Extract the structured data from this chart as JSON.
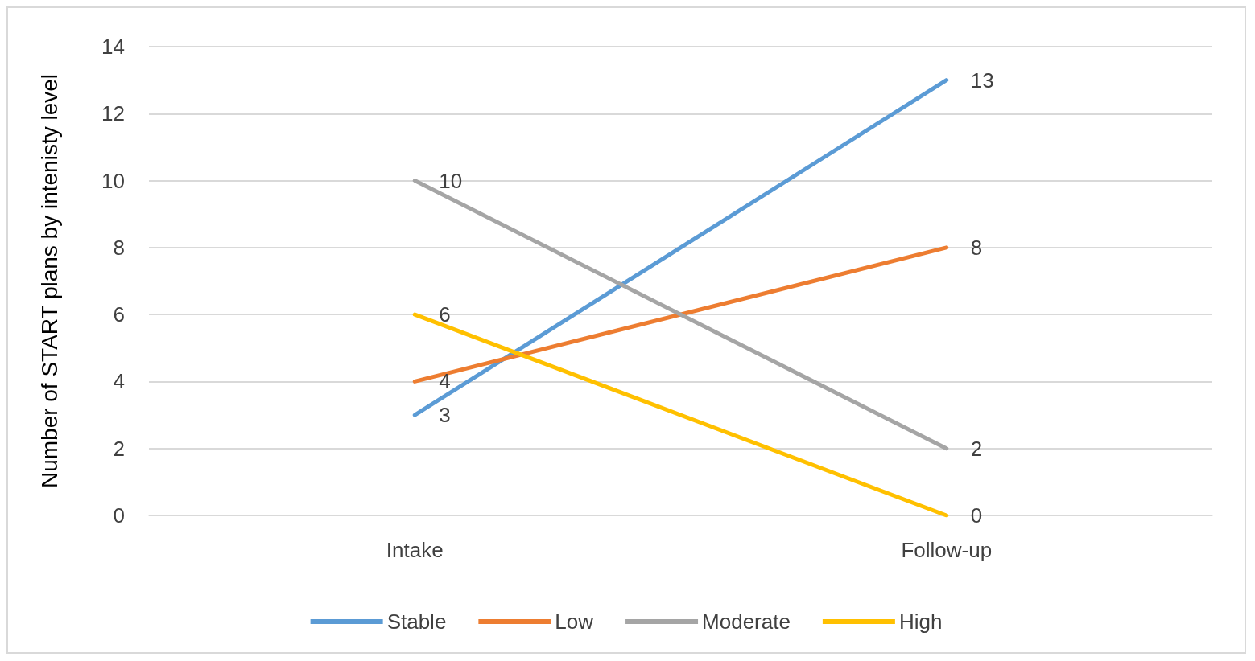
{
  "chart_data": {
    "type": "line",
    "ylabel": "Number of START plans by intenisty level",
    "categories": [
      "Intake",
      "Follow-up"
    ],
    "series": [
      {
        "name": "Stable",
        "color": "#5b9bd5",
        "values": [
          3,
          13
        ]
      },
      {
        "name": "Low",
        "color": "#ed7d31",
        "values": [
          4,
          8
        ]
      },
      {
        "name": "Moderate",
        "color": "#a5a5a5",
        "values": [
          10,
          2
        ]
      },
      {
        "name": "High",
        "color": "#ffc000",
        "values": [
          6,
          0
        ]
      }
    ],
    "ylim": [
      0,
      14
    ],
    "yticks": [
      0,
      2,
      4,
      6,
      8,
      10,
      12,
      14
    ],
    "grid": "y",
    "legend": "bottom",
    "data_labels": true,
    "marker": "none",
    "line_style": "solid"
  }
}
